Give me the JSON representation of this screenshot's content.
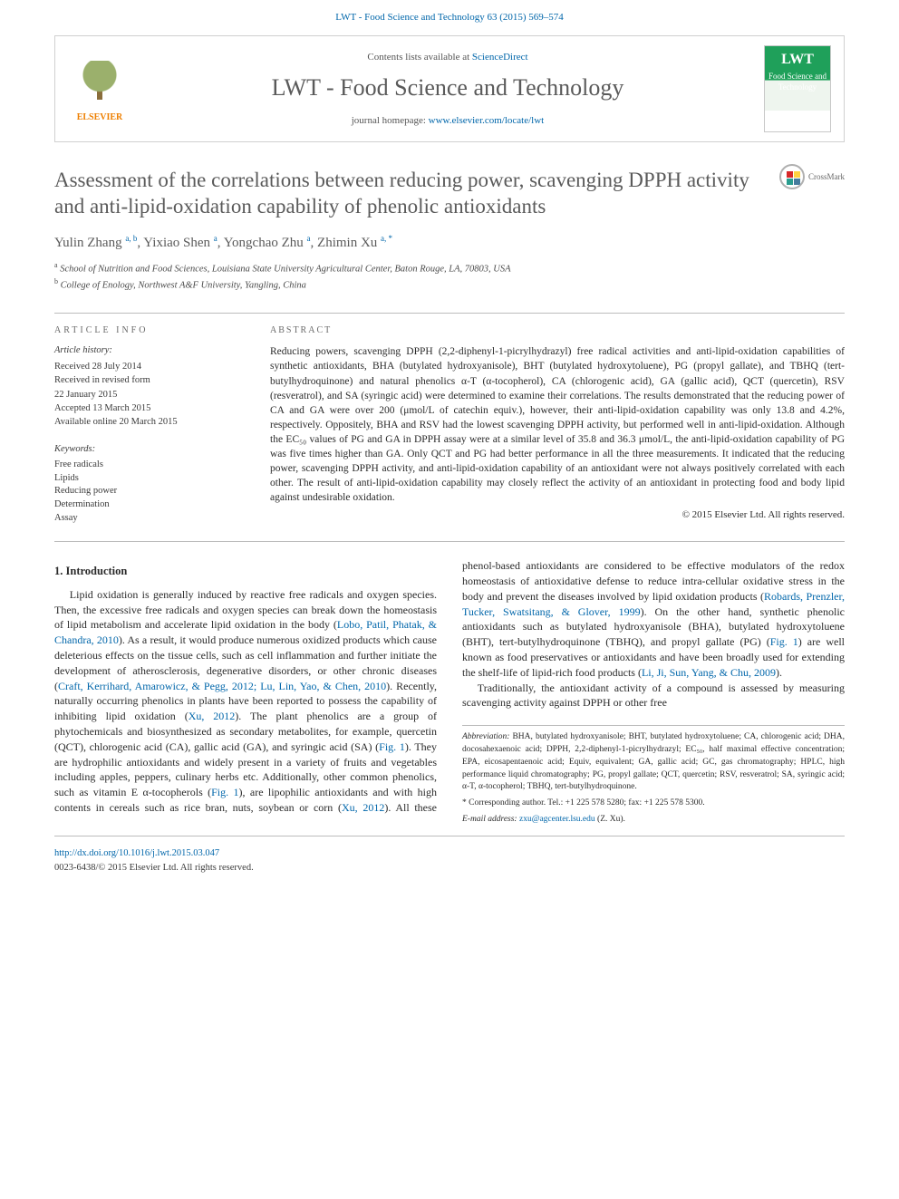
{
  "header": {
    "citation": "LWT - Food Science and Technology 63 (2015) 569–574"
  },
  "masthead": {
    "publisher": "ELSEVIER",
    "contents_prefix": "Contents lists available at ",
    "contents_link": "ScienceDirect",
    "journal": "LWT - Food Science and Technology",
    "homepage_prefix": "journal homepage: ",
    "homepage_url": "www.elsevier.com/locate/lwt",
    "cover_abbrev": "LWT",
    "cover_sub": "Food Science and Technology"
  },
  "crossmark": "CrossMark",
  "title": "Assessment of the correlations between reducing power, scavenging DPPH activity and anti-lipid-oxidation capability of phenolic antioxidants",
  "authors_html": "Yulin Zhang <span class='sup'>a, b</span>, Yixiao Shen <span class='sup'>a</span>, Yongchao Zhu <span class='sup'>a</span>, Zhimin Xu <span class='sup'>a, <span class='star'>*</span></span>",
  "affiliations": [
    {
      "mark": "a",
      "text": "School of Nutrition and Food Sciences, Louisiana State University Agricultural Center, Baton Rouge, LA, 70803, USA"
    },
    {
      "mark": "b",
      "text": "College of Enology, Northwest A&F University, Yangling, China"
    }
  ],
  "article_info": {
    "heading": "ARTICLE INFO",
    "history_heading": "Article history:",
    "history": [
      "Received 28 July 2014",
      "Received in revised form",
      "22 January 2015",
      "Accepted 13 March 2015",
      "Available online 20 March 2015"
    ],
    "keywords_heading": "Keywords:",
    "keywords": [
      "Free radicals",
      "Lipids",
      "Reducing power",
      "Determination",
      "Assay"
    ]
  },
  "abstract": {
    "heading": "ABSTRACT",
    "text": "Reducing powers, scavenging DPPH (2,2-diphenyl-1-picrylhydrazyl) free radical activities and anti-lipid-oxidation capabilities of synthetic antioxidants, BHA (butylated hydroxyanisole), BHT (butylated hydroxytoluene), PG (propyl gallate), and TBHQ (tert-butylhydroquinone) and natural phenolics α-T (α-tocopherol), CA (chlorogenic acid), GA (gallic acid), QCT (quercetin), RSV (resveratrol), and SA (syringic acid) were determined to examine their correlations. The results demonstrated that the reducing power of CA and GA were over 200 (μmol/L of catechin equiv.), however, their anti-lipid-oxidation capability was only 13.8 and 4.2%, respectively. Oppositely, BHA and RSV had the lowest scavenging DPPH activity, but performed well in anti-lipid-oxidation. Although the EC₅₀ values of PG and GA in DPPH assay were at a similar level of 35.8 and 36.3 μmol/L, the anti-lipid-oxidation capability of PG was five times higher than GA. Only QCT and PG had better performance in all the three measurements. It indicated that the reducing power, scavenging DPPH activity, and anti-lipid-oxidation capability of an antioxidant were not always positively correlated with each other. The result of anti-lipid-oxidation capability may closely reflect the activity of an antioxidant in protecting food and body lipid against undesirable oxidation.",
    "copyright": "© 2015 Elsevier Ltd. All rights reserved."
  },
  "body": {
    "section_heading": "1. Introduction",
    "p1_a": "Lipid oxidation is generally induced by reactive free radicals and oxygen species. Then, the excessive free radicals and oxygen species can break down the homeostasis of lipid metabolism and accelerate lipid oxidation in the body (",
    "cite1": "Lobo, Patil, Phatak, & Chandra, 2010",
    "p1_b": "). As a result, it would produce numerous oxidized products which cause deleterious effects on the tissue cells, such as cell inflammation and further initiate the development of atherosclerosis, degenerative disorders, or other chronic diseases (",
    "cite2": "Craft, Kerrihard, Amarowicz, & Pegg, 2012; Lu, Lin, Yao, & Chen, 2010",
    "p1_c": "). Recently, naturally occurring phenolics in plants have been reported to possess the capability of inhibiting lipid oxidation (",
    "cite3": "Xu, 2012",
    "p1_d": "). The plant phenolics are a group of phytochemicals and biosynthesized as secondary metabolites, for example, quercetin (QCT), chlorogenic acid (CA), gallic acid (GA), and syringic acid (SA) (",
    "cite4": "Fig. 1",
    "p1_e": "). They are hydrophilic antioxidants and widely present in a variety of fruits and vegetables including apples, peppers, culinary herbs etc. Additionally, other common phenolics, such as vitamin E α-tocopherols (",
    "cite5": "Fig. 1",
    "p1_f": "), are lipophilic antioxidants and with high contents in cereals such as rice bran, nuts, soybean or corn (",
    "cite6": "Xu, 2012",
    "p1_g": "). All these phenol-based antioxidants are considered to be effective modulators of the redox homeostasis of antioxidative defense to reduce intra-cellular oxidative stress in the body and prevent the diseases involved by lipid oxidation products (",
    "cite7": "Robards, Prenzler, Tucker, Swatsitang, & Glover, 1999",
    "p1_h": "). On the other hand, synthetic phenolic antioxidants such as butylated hydroxyanisole (BHA), butylated hydroxytoluene (BHT), tert-butylhydroquinone (TBHQ), and propyl gallate (PG) (",
    "cite8": "Fig. 1",
    "p1_i": ") are well known as food preservatives or antioxidants and have been broadly used for extending the shelf-life of lipid-rich food products (",
    "cite9": "Li, Ji, Sun, Yang, & Chu, 2009",
    "p1_j": ").",
    "p2": "Traditionally, the antioxidant activity of a compound is assessed by measuring scavenging activity against DPPH or other free"
  },
  "footnotes": {
    "abbrev_label": "Abbreviation:",
    "abbrev_text": " BHA, butylated hydroxyanisole; BHT, butylated hydroxytoluene; CA, chlorogenic acid; DHA, docosahexaenoic acid; DPPH, 2,2-diphenyl-1-picrylhydrazyl; EC₅₀, half maximal effective concentration; EPA, eicosapentaenoic acid; Equiv, equivalent; GA, gallic acid; GC, gas chromatography; HPLC, high performance liquid chromatography; PG, propyl gallate; QCT, quercetin; RSV, resveratrol; SA, syringic acid; α-T, α-tocopherol; TBHQ, tert-butylhydroquinone.",
    "corr_label": "* Corresponding author.",
    "corr_text": " Tel.: +1 225 578 5280; fax: +1 225 578 5300.",
    "email_label": "E-mail address:",
    "email": " zxu@agcenter.lsu.edu",
    "email_suffix": " (Z. Xu)."
  },
  "footer": {
    "doi_url": "http://dx.doi.org/10.1016/j.lwt.2015.03.047",
    "issn_line": "0023-6438/© 2015 Elsevier Ltd. All rights reserved."
  },
  "colors": {
    "link": "#0066aa",
    "text": "#2a2a2a",
    "muted": "#5a5a5a",
    "rule": "#bcbcbc",
    "elsevier_orange": "#ee7f00",
    "cover_green": "#1fa05a"
  },
  "typography": {
    "body_fontsize_pt": 9,
    "title_fontsize_pt": 17,
    "journal_fontsize_pt": 20,
    "font_family": "Georgia / Times-like serif"
  }
}
